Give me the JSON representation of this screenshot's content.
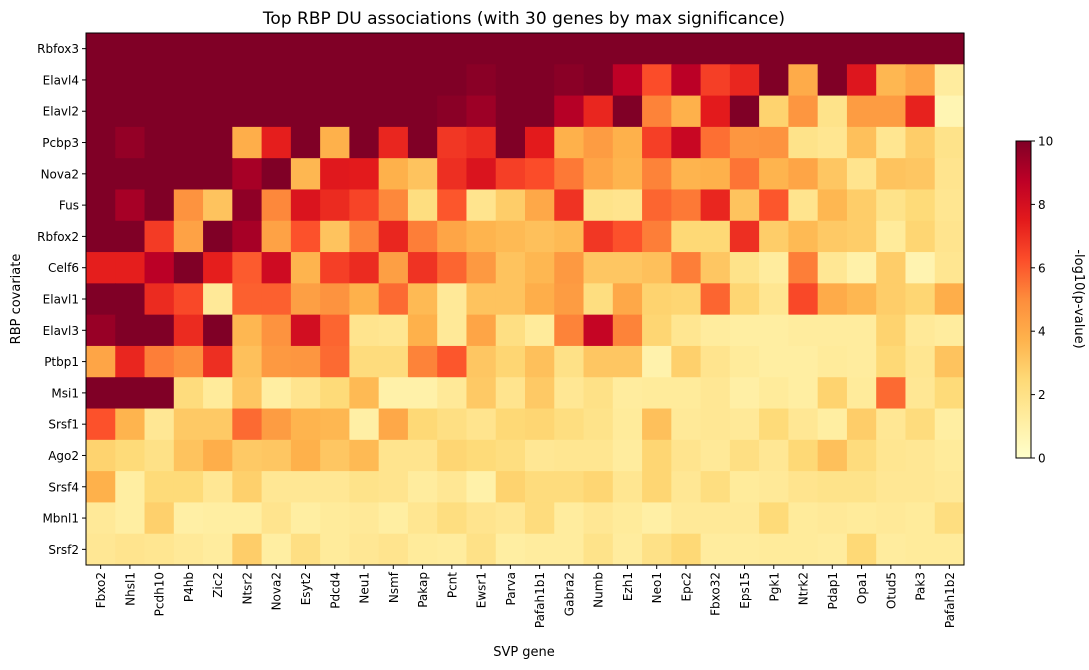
{
  "chart_data": {
    "type": "heatmap",
    "title": "Top RBP DU associations (with 30 genes by max significance)",
    "xlabel": "SVP gene",
    "ylabel": "RBP covariate",
    "x_categories": [
      "Fbxo2",
      "Nhsl1",
      "Pcdh10",
      "P4hb",
      "Zic2",
      "Ntsr2",
      "Nova2",
      "Esyt2",
      "Pdcd4",
      "Neu1",
      "Nsmf",
      "Pakap",
      "Pcnt",
      "Ewsr1",
      "Parva",
      "Pafah1b1",
      "Gabra2",
      "Numb",
      "Ezh1",
      "Neo1",
      "Epc2",
      "Fbxo32",
      "Eps15",
      "Pgk1",
      "Ntrk2",
      "Pdap1",
      "Opa1",
      "Otud5",
      "Pak3",
      "Pafah1b2"
    ],
    "y_categories": [
      "Rbfox3",
      "Elavl4",
      "Elavl2",
      "Pcbp3",
      "Nova2",
      "Fus",
      "Rbfox2",
      "Celf6",
      "Elavl1",
      "Elavl3",
      "Ptbp1",
      "Msi1",
      "Srsf1",
      "Ago2",
      "Srsf4",
      "Mbnl1",
      "Srsf2"
    ],
    "values": [
      [
        10,
        10,
        10,
        10,
        10,
        10,
        10,
        10,
        10,
        10,
        10,
        10,
        10,
        10,
        10,
        10,
        10,
        10,
        10,
        10,
        10,
        10,
        10,
        10,
        10,
        10,
        10,
        10,
        10,
        10
      ],
      [
        10,
        10,
        10,
        10,
        10,
        10,
        10,
        10,
        10,
        10,
        10,
        10,
        10,
        9.8,
        10,
        10,
        9.8,
        10,
        8.7,
        6.3,
        8.8,
        6.6,
        7.2,
        10,
        4,
        10,
        7.7,
        3.6,
        4.2,
        1.3
      ],
      [
        10,
        10,
        10,
        10,
        10,
        10,
        10,
        10,
        10,
        10,
        10,
        10,
        9.8,
        9.4,
        10,
        10,
        8.9,
        7.2,
        10,
        5.2,
        3.8,
        7.5,
        10,
        2.7,
        4.7,
        1.9,
        4.5,
        4.5,
        7.3,
        0.7
      ],
      [
        10,
        9.6,
        10,
        10,
        10,
        3.9,
        7.4,
        10,
        3.8,
        10,
        7.2,
        10,
        6.8,
        7.1,
        10,
        7.5,
        3.8,
        4.5,
        3.8,
        6.6,
        8.4,
        5.6,
        4.7,
        4.8,
        1.9,
        1.7,
        3.3,
        1.7,
        2.9,
        1.9
      ],
      [
        10,
        10,
        10,
        10,
        10,
        9.2,
        10,
        3.6,
        7.6,
        7.5,
        3.8,
        3.2,
        7,
        7.8,
        6.6,
        6.3,
        5.4,
        4.2,
        3.7,
        5.2,
        3.7,
        3.8,
        5.5,
        3.7,
        4.2,
        3.1,
        1.8,
        3.2,
        3.1,
        1.8
      ],
      [
        10,
        9.2,
        10,
        4.8,
        3.2,
        9.7,
        5.1,
        7.8,
        7.1,
        6.5,
        5.1,
        2.2,
        6.1,
        1.8,
        2.9,
        4.1,
        6.9,
        1.9,
        1.8,
        5.8,
        5.4,
        7.2,
        3.2,
        6.1,
        1.8,
        3.6,
        2.9,
        1.9,
        2.4,
        1.7
      ],
      [
        10,
        10,
        6.7,
        4.3,
        10,
        9.2,
        4.3,
        6.2,
        3.2,
        5.2,
        7.2,
        5.3,
        4.2,
        3.7,
        3.5,
        3.3,
        3.5,
        6.8,
        6.2,
        5.3,
        2.5,
        2.5,
        7,
        2.9,
        3.5,
        3,
        2.9,
        1.4,
        2.6,
        1.8
      ],
      [
        7.4,
        7.4,
        8.8,
        10,
        7.4,
        6,
        8.2,
        3.7,
        6.6,
        7.1,
        4.4,
        6.9,
        5.8,
        4.6,
        3.2,
        3.6,
        4.6,
        3.1,
        3.1,
        3.3,
        5.3,
        3.1,
        1.9,
        1.3,
        5.3,
        1.6,
        1,
        2.9,
        0.8,
        1.7
      ],
      [
        10,
        10,
        7.1,
        6.4,
        1.5,
        5.9,
        5.9,
        4.4,
        4.8,
        3.8,
        5.7,
        3.5,
        1.5,
        3.2,
        3.2,
        3.9,
        4.5,
        2.2,
        4.1,
        2.7,
        2.6,
        5.8,
        2.6,
        1.7,
        6.4,
        4,
        3.6,
        2.9,
        2.6,
        3.9
      ],
      [
        9.5,
        10,
        10,
        7.1,
        10,
        3.6,
        4.8,
        8.1,
        5.8,
        1.8,
        1.7,
        3.8,
        1.5,
        4.2,
        2.1,
        1.4,
        5.2,
        8.5,
        5.2,
        2.6,
        1.7,
        1.3,
        1.2,
        1.2,
        1.3,
        1.3,
        1.3,
        2.7,
        1.5,
        1.3
      ],
      [
        4.2,
        7.2,
        5.3,
        4.9,
        7,
        3.3,
        4.6,
        4.7,
        5.7,
        2.3,
        2.3,
        5.2,
        6.1,
        3.1,
        2.6,
        3.3,
        2,
        3.1,
        3.1,
        0.9,
        2.8,
        1.8,
        1.4,
        1.2,
        1.2,
        1.4,
        1.3,
        2.5,
        1.7,
        3.2
      ],
      [
        10,
        10,
        10,
        2.3,
        1.4,
        3.1,
        1.2,
        1.8,
        2.4,
        3.5,
        1,
        1,
        1.5,
        3,
        1.8,
        3,
        1.6,
        2,
        1.3,
        1.4,
        1.4,
        1.6,
        1.1,
        1.4,
        1.2,
        2.7,
        1.4,
        5.7,
        1.6,
        2.4
      ],
      [
        6.2,
        3.7,
        1.6,
        3,
        3,
        5.7,
        4.5,
        3.7,
        3.6,
        1.1,
        4.1,
        2.5,
        2.1,
        1.8,
        2.5,
        2.6,
        2.2,
        1.9,
        1.4,
        3.3,
        1.5,
        1.6,
        1.5,
        2.4,
        1.6,
        1.2,
        2.9,
        1.6,
        2.3,
        1.2
      ],
      [
        2.7,
        2.4,
        2,
        3.2,
        3.9,
        3,
        3.1,
        3.8,
        3.1,
        3.5,
        1.8,
        1.8,
        2.6,
        2.4,
        2.2,
        1.6,
        1.7,
        1.7,
        1.3,
        2.6,
        1.8,
        1.5,
        2.1,
        1.6,
        2.5,
        3.3,
        2.3,
        1.7,
        1.6,
        1.4
      ],
      [
        3.8,
        1.2,
        2.4,
        2.4,
        1.6,
        2.8,
        1.6,
        1.6,
        1.6,
        1.9,
        1.8,
        1.3,
        1.6,
        1,
        2.7,
        2.3,
        2.3,
        2.6,
        1.7,
        2.6,
        1.6,
        2.2,
        1.4,
        1.5,
        1.8,
        1.9,
        1.9,
        1.6,
        1.6,
        1.5
      ],
      [
        1.5,
        1.2,
        2.8,
        1.1,
        1.2,
        1.2,
        1.8,
        1.2,
        1.4,
        1.5,
        1.2,
        1.7,
        2.2,
        1.8,
        1.6,
        2.3,
        1.3,
        1.6,
        1.4,
        1.1,
        1.5,
        1.5,
        1.5,
        2.4,
        1.4,
        1.5,
        1.4,
        1.5,
        1.4,
        2.2
      ],
      [
        1.6,
        1.8,
        1.7,
        1.5,
        1.3,
        2.9,
        1.2,
        2.1,
        1.4,
        1.6,
        1.8,
        1.4,
        1.3,
        2,
        1.2,
        1.3,
        1.3,
        1.9,
        1.3,
        2,
        2.5,
        1.3,
        1.3,
        1.4,
        1.4,
        1.3,
        2.5,
        1.3,
        1.4,
        1.4
      ]
    ],
    "vmin": 0,
    "vmax": 10,
    "colormap": [
      "#ffffcc",
      "#ffeda0",
      "#fed976",
      "#feb24c",
      "#fd8d3c",
      "#fc4e2a",
      "#e31a1c",
      "#bd0026",
      "#800026"
    ],
    "colorbar": {
      "label": "-log10(p-value)",
      "ticks": [
        0,
        2,
        4,
        6,
        8,
        10
      ]
    }
  }
}
